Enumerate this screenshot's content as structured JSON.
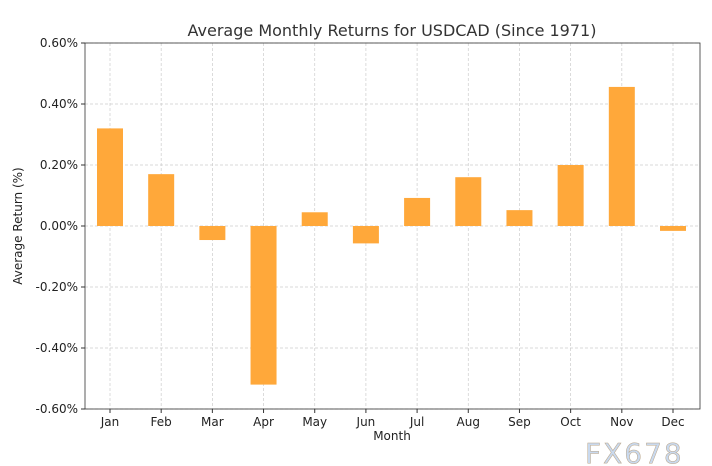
{
  "chart_data": {
    "type": "bar",
    "title": "Average Monthly Returns for USDCAD (Since 1971)",
    "xlabel": "Month",
    "ylabel": "Average Return (%)",
    "categories": [
      "Jan",
      "Feb",
      "Mar",
      "Apr",
      "May",
      "Jun",
      "Jul",
      "Aug",
      "Sep",
      "Oct",
      "Nov",
      "Dec"
    ],
    "values": [
      0.32,
      0.17,
      -0.046,
      -0.52,
      0.045,
      -0.057,
      0.092,
      0.16,
      0.052,
      0.2,
      0.456,
      -0.016
    ],
    "ylim": [
      -0.6,
      0.6
    ],
    "yticks": [
      -0.6,
      -0.4,
      -0.2,
      0.0,
      0.2,
      0.4,
      0.6
    ],
    "ytick_labels": [
      "-0.60%",
      "-0.40%",
      "-0.20%",
      "0.00%",
      "0.20%",
      "0.40%",
      "0.60%"
    ],
    "grid": true,
    "bar_color": "#ffa83a"
  },
  "watermark": "FX678"
}
